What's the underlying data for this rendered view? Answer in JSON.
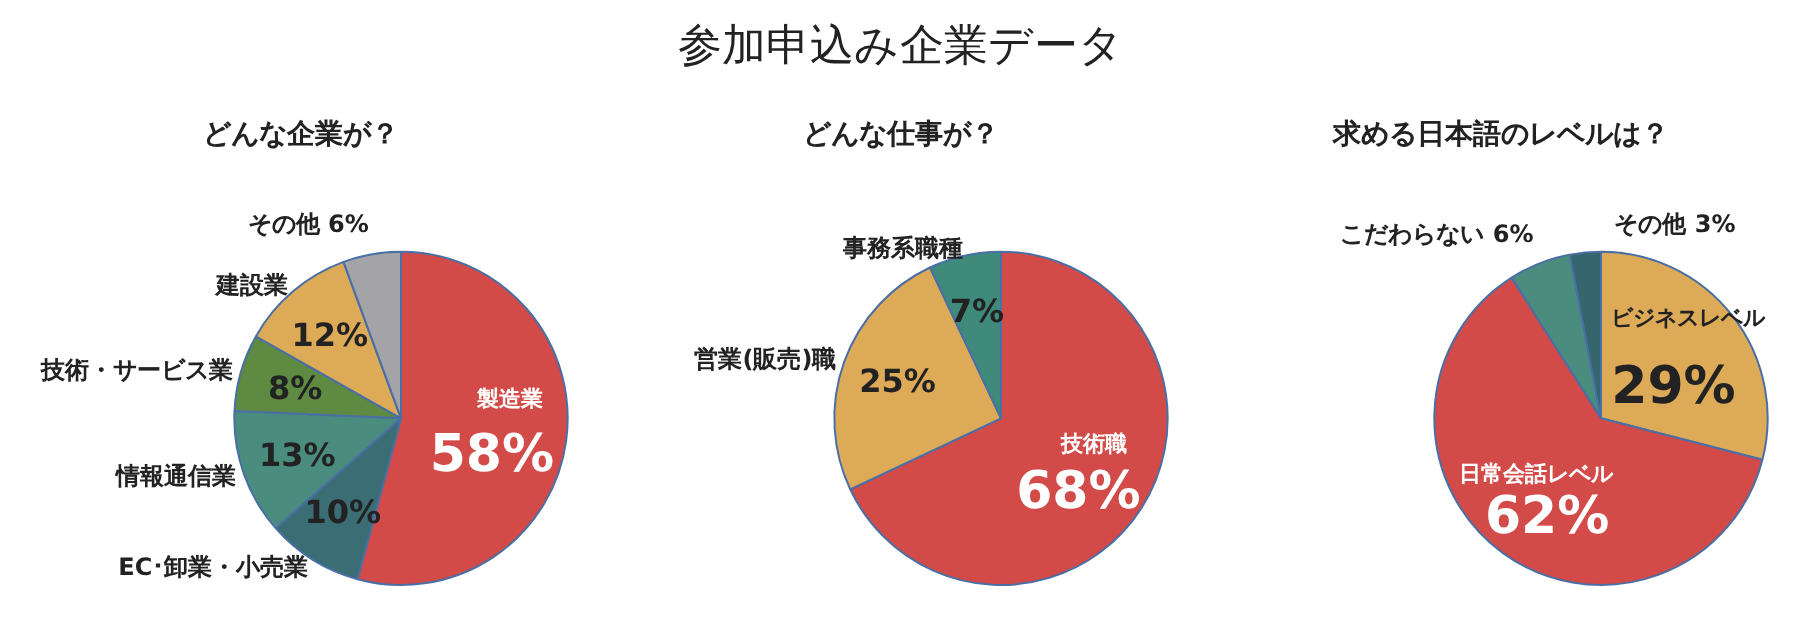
{
  "chart_data": [
    {
      "type": "other",
      "title": "参加申込み企業データ"
    },
    {
      "type": "pie",
      "title": "どんな企業が？",
      "categories": [
        "製造業",
        "EC･卸業・小売業",
        "情報通信業",
        "技術・サービス業",
        "建設業",
        "その他"
      ],
      "values": [
        58,
        10,
        13,
        8,
        12,
        6
      ],
      "value_labels": [
        "58%",
        "10%",
        "13%",
        "8%",
        "12%",
        "6%"
      ],
      "colors": [
        "#d24b48",
        "#3a6d74",
        "#4a8c7e",
        "#5f8a42",
        "#ddab57",
        "#a3a3a8"
      ],
      "legend": false
    },
    {
      "type": "pie",
      "title": "どんな仕事が？",
      "categories": [
        "技術職",
        "営業(販売)職",
        "事務系職種"
      ],
      "values": [
        68,
        25,
        7
      ],
      "value_labels": [
        "68%",
        "25%",
        "7%"
      ],
      "colors": [
        "#d24b48",
        "#ddab57",
        "#3f8a7b"
      ],
      "legend": false
    },
    {
      "type": "pie",
      "title": "求める日本語のレベルは？",
      "categories": [
        "ビジネスレベル",
        "日常会話レベル",
        "こだわらない",
        "その他"
      ],
      "values": [
        29,
        62,
        6,
        3
      ],
      "value_labels": [
        "29%",
        "62%",
        "6%",
        "3%"
      ],
      "colors": [
        "#ddab57",
        "#d24b48",
        "#4a8c7e",
        "#35666e"
      ],
      "legend": false
    }
  ]
}
